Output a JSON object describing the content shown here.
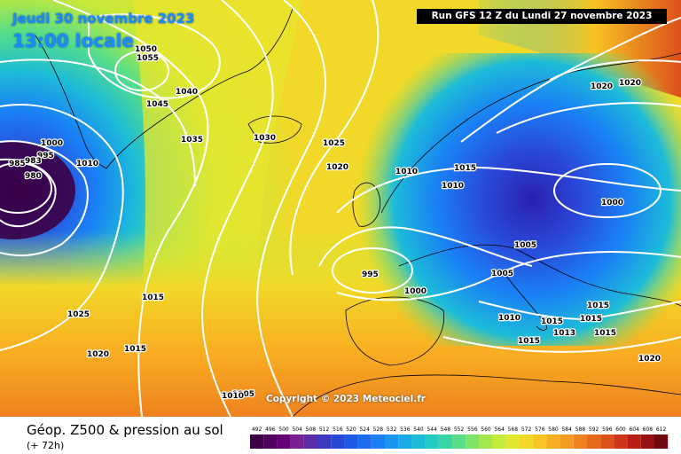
{
  "header": {
    "date": "Jeudi 30 novembre 2023",
    "local_time": "13:00 locale",
    "run": "Run GFS 12 Z du Lundi 27 novembre 2023"
  },
  "copyright": "Copyright © 2023 Meteociel.fr",
  "footer": {
    "title": "Géop. Z500 & pression au sol",
    "subtitle": "(+ 72h)"
  },
  "legend": {
    "values": [
      "492",
      "496",
      "500",
      "504",
      "508",
      "512",
      "516",
      "520",
      "524",
      "528",
      "532",
      "536",
      "540",
      "544",
      "548",
      "552",
      "556",
      "560",
      "564",
      "568",
      "572",
      "576",
      "580",
      "584",
      "588",
      "592",
      "596",
      "600",
      "604",
      "608",
      "612"
    ],
    "colors": [
      "#3b0046",
      "#50005e",
      "#660077",
      "#7a1f8f",
      "#5a2ca8",
      "#3d39c0",
      "#2a48d8",
      "#1f5ae6",
      "#1c6cf0",
      "#1a80f5",
      "#1a96f0",
      "#1aaae6",
      "#1cbcd8",
      "#22ccc2",
      "#38d6a6",
      "#58de86",
      "#7ee467",
      "#a2e84c",
      "#c6ea3a",
      "#e2e62e",
      "#f2d828",
      "#f7c424",
      "#f8ae22",
      "#f59a20",
      "#ef821e",
      "#e76a1c",
      "#dc501a",
      "#cc3518",
      "#b81e16",
      "#981014",
      "#700810"
    ]
  },
  "pressure_labels": [
    "1050",
    "1055",
    "1045",
    "1040",
    "1035",
    "1030",
    "1025",
    "1020",
    "1010",
    "1015",
    "1010",
    "1020",
    "1020",
    "1000",
    "1005",
    "1005",
    "995",
    "1000",
    "1010",
    "1015",
    "1013",
    "1015",
    "1015",
    "1015",
    "1020",
    "1000",
    "995",
    "985",
    "983",
    "980",
    "1010",
    "1015",
    "1025",
    "1015",
    "1020",
    "1015",
    "1005",
    "1010"
  ]
}
